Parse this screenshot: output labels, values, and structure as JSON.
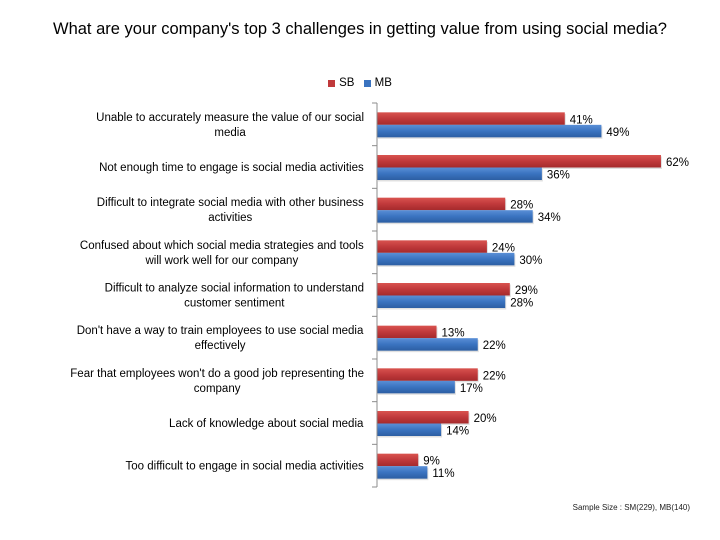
{
  "chart_data": {
    "type": "bar",
    "orientation": "horizontal",
    "title": "What are your company's top 3 challenges in getting value from using social media?",
    "xlabel": "",
    "ylabel": "",
    "xlim": [
      0,
      65
    ],
    "grid": false,
    "legend_position": "top",
    "categories": [
      [
        "Unable to accurately measure the value of our social",
        "media"
      ],
      [
        "Not enough time to engage is social media activities"
      ],
      [
        "Difficult to integrate social media with other business",
        "activities"
      ],
      [
        "Confused about which social media strategies and tools",
        "will work well for our company"
      ],
      [
        "Difficult to analyze social information to understand",
        "customer sentiment"
      ],
      [
        "Don't have a way to train employees to use social media",
        "effectively"
      ],
      [
        "Fear that employees won't do a good job representing the",
        "company"
      ],
      [
        "Lack of knowledge about social media"
      ],
      [
        "Too difficult to engage in social media activities"
      ]
    ],
    "series": [
      {
        "name": "SB",
        "color": "#c0393b",
        "values": [
          41,
          62,
          28,
          24,
          29,
          13,
          22,
          20,
          9
        ],
        "labels": [
          "41%",
          "62%",
          "28%",
          "24%",
          "29%",
          "13%",
          "22%",
          "20%",
          "9%"
        ]
      },
      {
        "name": "MB",
        "color": "#3a73c0",
        "values": [
          49,
          36,
          34,
          30,
          28,
          22,
          17,
          14,
          11
        ],
        "labels": [
          "49%",
          "36%",
          "34%",
          "30%",
          "28%",
          "22%",
          "17%",
          "14%",
          "11%"
        ]
      }
    ],
    "footnote": "Sample Size : SM(229), MB(140)"
  }
}
